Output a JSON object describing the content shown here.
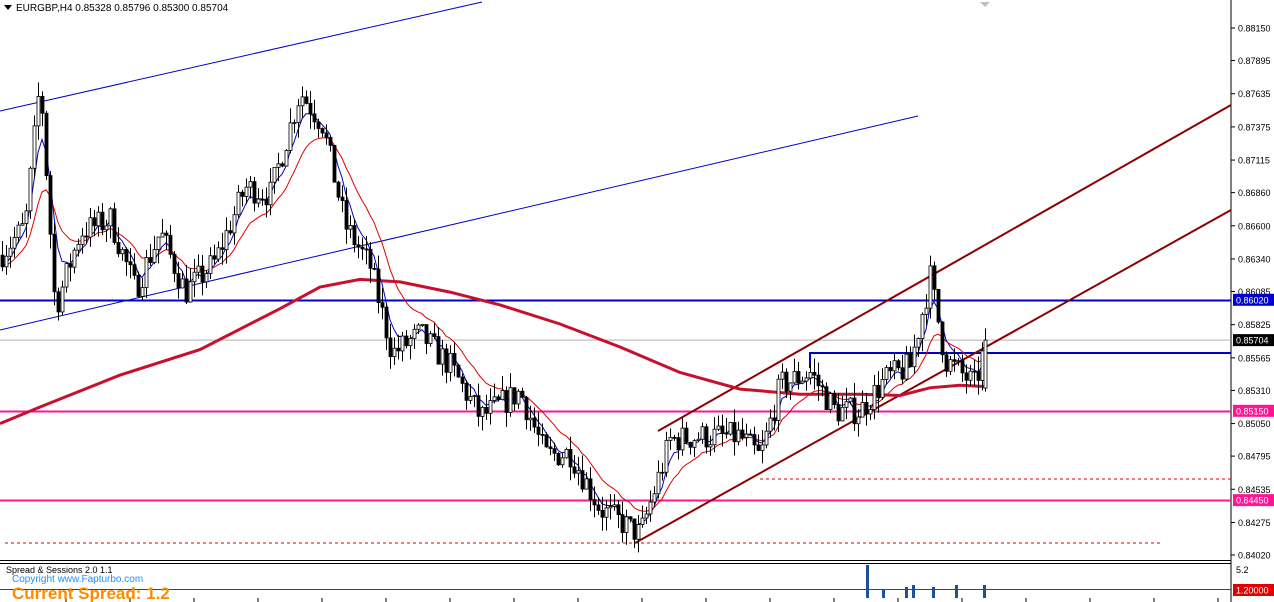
{
  "header": {
    "symbol_line": "EURGBP,H4  0.85328 0.85796 0.85300 0.85704"
  },
  "price_axis": {
    "ticks": [
      "0.88150",
      "0.87895",
      "0.87635",
      "0.87375",
      "0.87115",
      "0.86860",
      "0.86600",
      "0.86340",
      "0.86085",
      "0.85825",
      "0.85565",
      "0.85310",
      "0.85050",
      "0.84795",
      "0.84535",
      "0.84275",
      "0.84020"
    ],
    "current_price": "0.85704",
    "level_labels": [
      {
        "text": "0.86020",
        "price": 0.8602,
        "color": "#0000cd"
      },
      {
        "text": "0.85150",
        "price": 0.8515,
        "color": "#ff1493"
      },
      {
        "text": "0.84450",
        "price": 0.8445,
        "color": "#ff1493"
      }
    ]
  },
  "indicator": {
    "title": "Spread & Sessions 2.0 1.1",
    "copyright": "Copyright www.Fapturbo.com",
    "current_spread": "Current Spread: 1.2",
    "max_label": "5.2",
    "level_label": "1.20000"
  },
  "chart_data": {
    "type": "candlestick",
    "symbol": "EURGBP",
    "timeframe": "H4",
    "last_bar": {
      "open": 0.85328,
      "high": 0.85796,
      "low": 0.853,
      "close": 0.85704
    },
    "ylim": [
      0.8393,
      0.8833
    ],
    "horizontal_levels": [
      0.8602,
      0.8515,
      0.8445
    ],
    "colors": {
      "ma_fast": "#0000cd",
      "ma_mid": "#e00000",
      "ma_slow": "#c8102e",
      "channel": "#8b0000",
      "support_resistance": "#ff1493",
      "resistance_blue": "#0000cd"
    }
  }
}
